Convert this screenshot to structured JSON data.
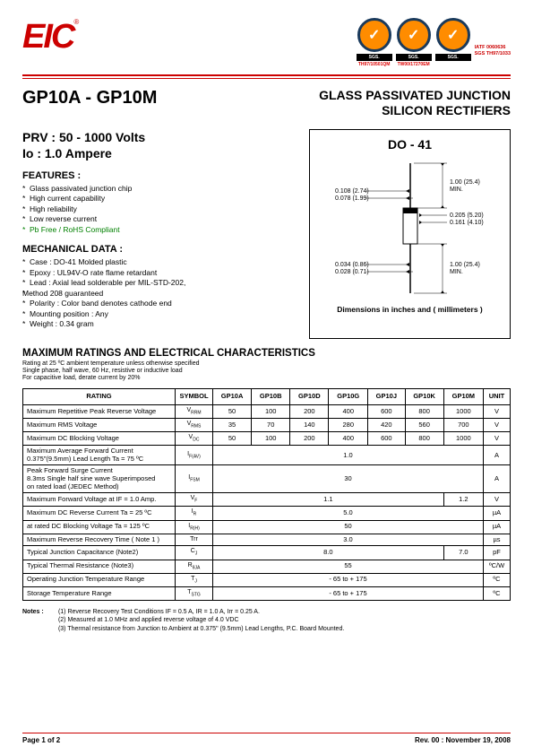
{
  "header": {
    "logo_text": "EIC",
    "logo_reg": "®",
    "certs": [
      {
        "sgs": "SGS.",
        "label": "TH97/10501QM"
      },
      {
        "sgs": "SGS.",
        "label": "TW00/17270EM"
      },
      {
        "sgs": "SGS.",
        "label": ""
      }
    ],
    "cert_side_line1": "IATF 0060636",
    "cert_side_line2": "SGS TH97/1033"
  },
  "title": {
    "part": "GP10A - GP10M",
    "product_l1": "GLASS PASSIVATED JUNCTION",
    "product_l2": "SILICON RECTIFIERS"
  },
  "specs": {
    "prv": "PRV : 50 - 1000 Volts",
    "io": "Io : 1.0 Ampere"
  },
  "features": {
    "heading": "FEATURES :",
    "items": [
      "Glass passivated junction chip",
      "High current capability",
      "High reliability",
      "Low reverse current",
      "Pb Free / RoHS Compliant"
    ]
  },
  "mech": {
    "heading": "MECHANICAL  DATA :",
    "items": [
      "Case :  DO-41  Molded plastic",
      "Epoxy : UL94V-O rate flame retardant",
      "Lead : Axial lead solderable per MIL-STD-202,",
      "           Method 208 guaranteed",
      "Polarity : Color band denotes cathode end",
      "Mounting  position : Any",
      "Weight :    0.34   gram"
    ]
  },
  "package": {
    "title": "DO - 41",
    "caption": "Dimensions in inches and ( millimeters )",
    "dims": {
      "lead_dia_top": "0.108 (2.74)",
      "lead_dia_bot": "0.078 (1.99)",
      "lead_len_top": "1.00 (25.4)",
      "lead_len_min": "MIN.",
      "body_dia_top": "0.205 (5.20)",
      "body_dia_bot": "0.161 (4.10)",
      "body_len_top": "1.00 (25.4)",
      "body_len_min": "MIN.",
      "wire_top": "0.034 (0.86)",
      "wire_bot": "0.028 (0.71)"
    }
  },
  "ratings": {
    "heading": "MAXIMUM RATINGS AND ELECTRICAL CHARACTERISTICS",
    "sub1": "Rating at 25 ºC ambient temperature unless otherwise specified",
    "sub2": "Single phase, half wave, 60 Hz, resistive or inductive load",
    "sub3": "For capacitive load, derate current by 20%",
    "columns": [
      "RATING",
      "SYMBOL",
      "GP10A",
      "GP10B",
      "GP10D",
      "GP10G",
      "GP10J",
      "GP10K",
      "GP10M",
      "UNIT"
    ],
    "rows": [
      {
        "label": "Maximum Repetitive Peak Reverse Voltage",
        "sym": "V",
        "sub": "RRM",
        "c": [
          "50",
          "100",
          "200",
          "400",
          "600",
          "800",
          "1000"
        ],
        "unit": "V"
      },
      {
        "label": "Maximum RMS Voltage",
        "sym": "V",
        "sub": "RMS",
        "c": [
          "35",
          "70",
          "140",
          "280",
          "420",
          "560",
          "700"
        ],
        "unit": "V"
      },
      {
        "label": "Maximum DC Blocking Voltage",
        "sym": "V",
        "sub": "DC",
        "c": [
          "50",
          "100",
          "200",
          "400",
          "600",
          "800",
          "1000"
        ],
        "unit": "V"
      }
    ],
    "span_rows": [
      {
        "label": "Maximum Average Forward Current\n0.375\"(9.5mm) Lead Length  Ta = 75 ºC",
        "sym": "I",
        "sub": "F(AV)",
        "val": "1.0",
        "unit": "A"
      },
      {
        "label": "Peak Forward Surge Current\n8.3ms Single half sine wave Superimposed\non rated load  (JEDEC Method)",
        "sym": "I",
        "sub": "FSM",
        "val": "30",
        "unit": "A"
      }
    ],
    "split_rows": [
      {
        "label": "Maximum Forward Voltage at IF = 1.0 Amp.",
        "sym": "V",
        "sub": "F",
        "v1": "1.1",
        "span1": 6,
        "v2": "1.2",
        "span2": 1,
        "unit": "V"
      }
    ],
    "dc_rev": {
      "label1": "Maximum DC Reverse Current     Ta = 25 ºC",
      "label2": "at rated DC Blocking Voltage       Ta = 125 ºC",
      "sym1": "I",
      "sub1": "R",
      "val1": "5.0",
      "unit1": "µA",
      "sym2": "I",
      "sub2": "R(H)",
      "val2": "50",
      "unit2": "µA"
    },
    "more_rows": [
      {
        "label": "Maximum Reverse Recovery Time ( Note 1 )",
        "sym": "Trr",
        "sub": "",
        "val": "3.0",
        "unit": "µs"
      }
    ],
    "cap_row": {
      "label": "Typical Junction Capacitance (Note2)",
      "sym": "C",
      "sub": "J",
      "v1": "8.0",
      "span1": 6,
      "v2": "7.0",
      "span2": 1,
      "unit": "pF"
    },
    "last_rows": [
      {
        "label": "Typical Thermal Resistance  (Note3)",
        "sym": "R",
        "sub": "θJA",
        "val": "55",
        "unit": "ºC/W"
      },
      {
        "label": "Operating Junction Temperature Range",
        "sym": "T",
        "sub": "J",
        "val": "- 65 to + 175",
        "unit": "ºC"
      },
      {
        "label": "Storage Temperature Range",
        "sym": "T",
        "sub": "STG",
        "val": "- 65 to + 175",
        "unit": "ºC"
      }
    ]
  },
  "notes": {
    "label": "Notes :",
    "n1": "(1) Reverse Recovery Test Conditions IF = 0.5 A, IR = 1.0 A, Irr = 0.25 A.",
    "n2": "(2) Measured at 1.0 MHz and applied  reverse voltage of 4.0 VDC",
    "n3": "(3) Thermal resistance from Junction to Ambient at 0.375\" (9.5mm) Lead Lengths, P.C. Board Mounted."
  },
  "footer": {
    "page": "Page 1 of 2",
    "rev": "Rev. 00 : November 19, 2008"
  }
}
